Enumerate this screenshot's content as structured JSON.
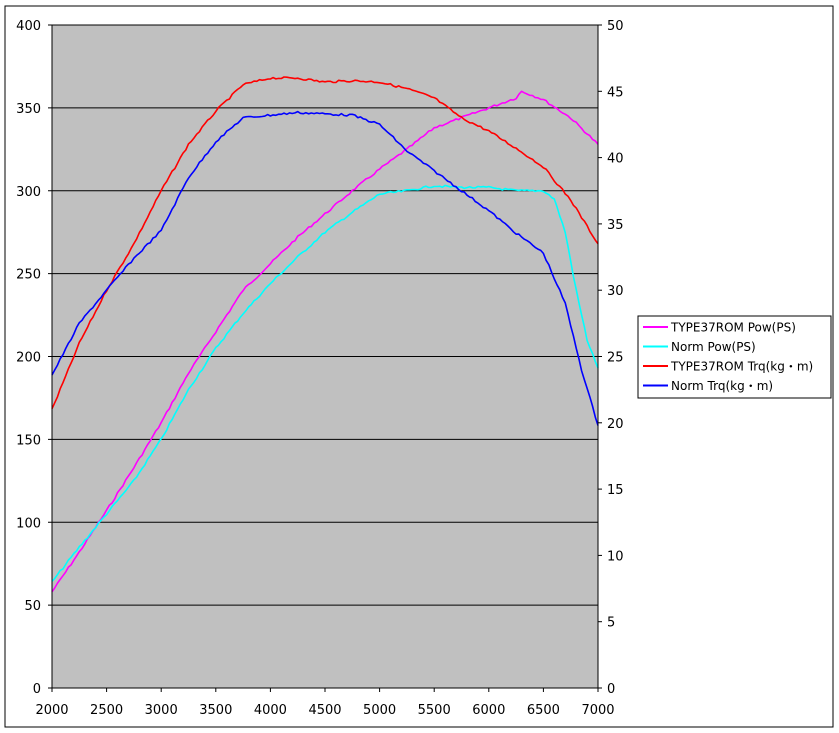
{
  "chart_data": {
    "type": "line",
    "title": "",
    "xlabel": "",
    "ylabel": "",
    "y2label": "",
    "xlim": [
      2000,
      7000
    ],
    "ylim": [
      0,
      400
    ],
    "y2lim": [
      0,
      50
    ],
    "x_ticks": [
      2000,
      2500,
      3000,
      3500,
      4000,
      4500,
      5000,
      5500,
      6000,
      6500,
      7000
    ],
    "y_ticks": [
      0,
      50,
      100,
      150,
      200,
      250,
      300,
      350,
      400
    ],
    "y2_ticks": [
      0,
      5,
      10,
      15,
      20,
      25,
      30,
      35,
      40,
      45,
      50
    ],
    "grid": "horizontal",
    "legend_position": "right",
    "plot_background": "#c0c0c0",
    "series": [
      {
        "name": "TYPE37ROM Pow(PS)",
        "color": "#ff00ff",
        "axis": "left",
        "x": [
          2000,
          2250,
          2500,
          2750,
          3000,
          3250,
          3500,
          3750,
          4000,
          4250,
          4500,
          4750,
          5000,
          5250,
          5500,
          5750,
          6000,
          6250,
          6300,
          6500,
          6750,
          7000
        ],
        "values": [
          58,
          82,
          107,
          133,
          160,
          190,
          215,
          240,
          256,
          272,
          286,
          300,
          313,
          325,
          338,
          344,
          350,
          356,
          360,
          355,
          344,
          328
        ]
      },
      {
        "name": "Norm Pow(PS)",
        "color": "#00ffff",
        "axis": "left",
        "x": [
          2000,
          2250,
          2500,
          2750,
          3000,
          3250,
          3500,
          3750,
          4000,
          4250,
          4500,
          4750,
          5000,
          5250,
          5500,
          5750,
          6000,
          6250,
          6500,
          6600,
          6700,
          6800,
          6900,
          7000
        ],
        "values": [
          64,
          85,
          105,
          125,
          150,
          180,
          205,
          226,
          244,
          260,
          275,
          287,
          298,
          300,
          303,
          302,
          302,
          300,
          300,
          295,
          275,
          240,
          210,
          193
        ]
      },
      {
        "name": "TYPE37ROM Trq(kg・m)",
        "color": "#ff0000",
        "axis": "right",
        "x": [
          2000,
          2250,
          2500,
          2750,
          3000,
          3250,
          3500,
          3750,
          4000,
          4250,
          4500,
          4750,
          5000,
          5250,
          5500,
          5750,
          6000,
          6250,
          6500,
          6750,
          7000
        ],
        "values": [
          21,
          26,
          30,
          33.5,
          37.5,
          41,
          43.5,
          45.5,
          46,
          46,
          45.7,
          45.8,
          45.7,
          45.2,
          44.5,
          43,
          42,
          40.7,
          39.3,
          36.8,
          33.5
        ]
      },
      {
        "name": "Norm Trq(kg・m)",
        "color": "#0000ff",
        "axis": "right",
        "x": [
          2000,
          2250,
          2500,
          2750,
          3000,
          3250,
          3500,
          3750,
          4000,
          4250,
          4500,
          4750,
          5000,
          5250,
          5500,
          5750,
          6000,
          6250,
          6500,
          6700,
          6850,
          7000
        ],
        "values": [
          23.6,
          27.5,
          30,
          32.4,
          34.5,
          38.5,
          41.2,
          43,
          43.2,
          43.4,
          43.3,
          43.2,
          42.5,
          40.5,
          39,
          37.5,
          36,
          34.3,
          32.8,
          29,
          24,
          19.8
        ]
      }
    ]
  }
}
